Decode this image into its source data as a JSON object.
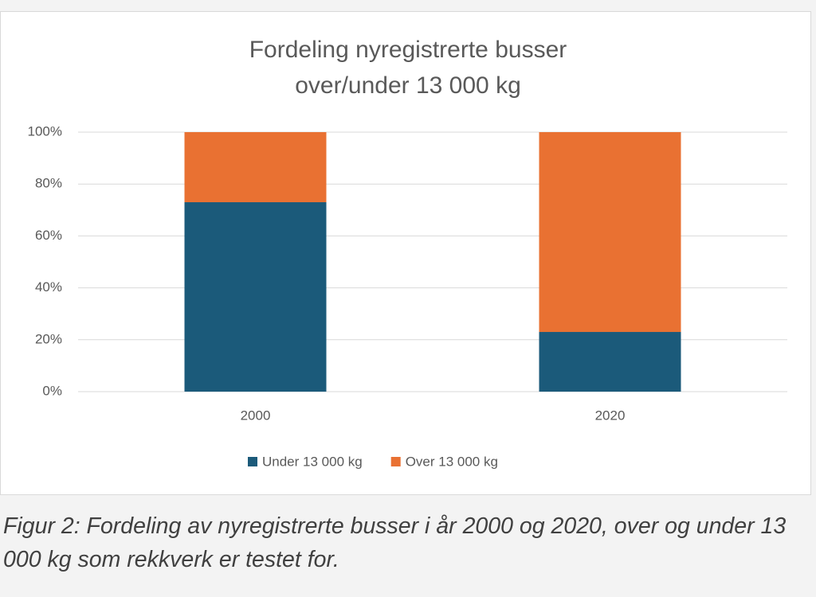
{
  "chart_data": {
    "type": "stacked_bar",
    "title": "Fordeling nyregistrerte busser over/under 13 000 kg",
    "categories": [
      "2000",
      "2020"
    ],
    "series": [
      {
        "name": "Under 13 000 kg",
        "color": "#1b5a7a",
        "values": [
          73,
          23
        ]
      },
      {
        "name": "Over 13 000 kg",
        "color": "#e97132",
        "values": [
          27,
          77
        ]
      }
    ],
    "ylim": [
      0,
      100
    ],
    "yticks": [
      {
        "value": 0,
        "label": "0%"
      },
      {
        "value": 20,
        "label": "20%"
      },
      {
        "value": 40,
        "label": "40%"
      },
      {
        "value": 60,
        "label": "60%"
      },
      {
        "value": 80,
        "label": "80%"
      },
      {
        "value": 100,
        "label": "100%"
      }
    ],
    "grid": true,
    "legend": "bottom"
  },
  "caption": "Figur 2: Fordeling av nyregistrerte busser i år 2000 og 2020, over og under 13 000 kg som rekkverk er testet for."
}
